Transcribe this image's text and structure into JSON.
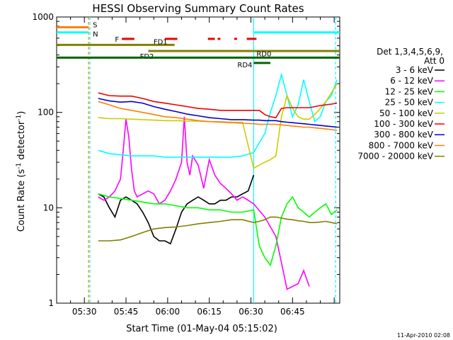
{
  "chart_data": {
    "type": "line",
    "title": "HESSI Observing Summary Count Rates",
    "ylabel": "Count Rate (s",
    "ylabel_sup1": "-1",
    "ylabel_mid": " detector",
    "ylabel_sup2": "-1",
    "ylabel_end": ")",
    "xlabel": "Start Time (01-May-04 05:15:02)",
    "yscale": "log",
    "ylim": [
      1,
      1000
    ],
    "xlim_minutes": [
      5.0,
      107.0
    ],
    "x_ticks": [
      {
        "label": "05:30",
        "min": 15
      },
      {
        "label": "05:45",
        "min": 30
      },
      {
        "label": "06:00",
        "min": 45
      },
      {
        "label": "06:15",
        "min": 60
      },
      {
        "label": "06:30",
        "min": 75
      },
      {
        "label": "06:45",
        "min": 90
      }
    ],
    "y_ticks": [
      {
        "label": "1",
        "v": 1
      },
      {
        "label": "10",
        "v": 10
      },
      {
        "label": "100",
        "v": 100
      },
      {
        "label": "1000",
        "v": 1000
      }
    ],
    "timestamp": "11-Apr-2010 02:08",
    "legend": {
      "header1": "Det 1,3,4,5,6,9,",
      "header2": "Att 0",
      "entries": [
        {
          "name": "3 - 6 keV",
          "color": "#000000"
        },
        {
          "name": "6 - 12 keV",
          "color": "#ff00ff"
        },
        {
          "name": "12 - 25 keV",
          "color": "#00ff00"
        },
        {
          "name": "25 - 50 keV",
          "color": "#00ffff"
        },
        {
          "name": "50 - 100 keV",
          "color": "#cccc00"
        },
        {
          "name": "100 - 300 keV",
          "color": "#ee0000"
        },
        {
          "name": "300 - 800 keV",
          "color": "#0000cc"
        },
        {
          "name": "800 - 7000 keV",
          "color": "#ff8000"
        },
        {
          "name": "7000 - 20000 keV",
          "color": "#808000"
        }
      ]
    },
    "flag_bars": [
      {
        "label": "S",
        "color": "#ff8000",
        "segments": [
          [
            5,
            16.5
          ]
        ],
        "level": 780
      },
      {
        "label": "N",
        "color": "#00ffff",
        "segments": [
          [
            5,
            16.5
          ],
          [
            76,
            107
          ]
        ],
        "level": 690
      },
      {
        "label": "F",
        "color": "#ee0000",
        "segments": [
          [
            28.5,
            33
          ],
          [
            44,
            48.5
          ],
          [
            59.5,
            62
          ],
          [
            63,
            64
          ],
          [
            69,
            70
          ],
          [
            73.5,
            77
          ]
        ],
        "level": 590,
        "dashed": true
      },
      {
        "label": "FD1",
        "color": "#808000",
        "segments": [
          [
            5,
            47.5
          ]
        ],
        "level": 510
      },
      {
        "label": "FD2",
        "color": "#808000",
        "segments": [
          [
            38,
            107
          ]
        ],
        "level": 440
      },
      {
        "label": "RD0",
        "color": "#006400",
        "segments": [
          [
            5,
            107
          ]
        ],
        "level": 375
      },
      {
        "label": "RD4",
        "color": "#006400",
        "segments": [
          [
            76,
            82
          ]
        ],
        "level": 330
      }
    ],
    "vlines": [
      {
        "min": 16.5,
        "color": "#ff8000",
        "dash": true
      },
      {
        "min": 17.0,
        "color": "#00ffff",
        "dash": true
      },
      {
        "min": 76.0,
        "color": "#00ffff",
        "dash": false
      },
      {
        "min": 105.5,
        "color": "#00ffff",
        "dash": true
      }
    ],
    "series": [
      {
        "name": "3 - 6 keV",
        "color": "#000000",
        "x": [
          20,
          22,
          24,
          26,
          28,
          30,
          32,
          34,
          36,
          38,
          40,
          42,
          44,
          46,
          48,
          50,
          52,
          54,
          56,
          58,
          60,
          62,
          64,
          66,
          68,
          70,
          72,
          74,
          76
        ],
        "y": [
          14,
          13,
          10,
          8,
          12,
          13,
          12,
          11,
          9,
          7,
          5,
          4.5,
          4.5,
          4.2,
          6,
          9,
          11,
          12,
          13,
          12,
          11,
          11,
          12,
          12,
          13,
          13,
          14,
          15,
          22
        ]
      },
      {
        "name": "6 - 12 keV",
        "color": "#ff00ff",
        "x": [
          20,
          22,
          24,
          26,
          28,
          29,
          30,
          31,
          32,
          33,
          34,
          36,
          38,
          40,
          42,
          44,
          46,
          48,
          50,
          51,
          52,
          53,
          54,
          56,
          58,
          60,
          62,
          64,
          66,
          68,
          70,
          72,
          74,
          76,
          80,
          84,
          88,
          92,
          94,
          96
        ],
        "y": [
          13,
          12,
          13,
          15,
          20,
          40,
          85,
          55,
          25,
          15,
          13,
          14,
          15,
          14,
          11,
          12,
          15,
          20,
          30,
          90,
          30,
          22,
          35,
          28,
          16,
          32,
          22,
          18,
          16,
          14,
          12,
          13,
          12,
          11,
          8,
          5,
          1.4,
          1.6,
          2.2,
          1.5
        ]
      },
      {
        "name": "12 - 25 keV",
        "color": "#00ff00",
        "x": [
          20,
          24,
          28,
          32,
          36,
          40,
          44,
          48,
          52,
          56,
          60,
          64,
          68,
          72,
          76,
          78,
          80,
          82,
          84,
          86,
          88,
          90,
          92,
          94,
          96,
          98,
          100,
          102,
          104,
          106
        ],
        "y": [
          14,
          13,
          12.5,
          12,
          11.5,
          11,
          11,
          10.5,
          10,
          10,
          9.5,
          9.5,
          9,
          9,
          9.5,
          4,
          3,
          2.5,
          4,
          8,
          11,
          13,
          10,
          9,
          8,
          9,
          10,
          11,
          8.5,
          9.5
        ]
      },
      {
        "name": "25 - 50 keV",
        "color": "#00ffff",
        "x": [
          20,
          24,
          28,
          32,
          36,
          40,
          44,
          48,
          52,
          56,
          60,
          64,
          68,
          72,
          76,
          78,
          80,
          82,
          84,
          86,
          88,
          90,
          92,
          94,
          96,
          98,
          100,
          102,
          104,
          106
        ],
        "y": [
          40,
          37,
          36,
          35,
          35,
          35,
          34,
          34,
          34,
          34,
          34,
          34,
          34,
          35,
          38,
          48,
          60,
          100,
          150,
          250,
          150,
          90,
          120,
          220,
          130,
          80,
          90,
          130,
          150,
          220
        ]
      },
      {
        "name": "50 - 100 keV",
        "color": "#cccc00",
        "x": [
          20,
          24,
          28,
          32,
          36,
          40,
          44,
          48,
          52,
          56,
          60,
          64,
          68,
          72,
          76,
          78,
          80,
          82,
          84,
          86,
          88,
          90,
          92,
          94,
          96,
          98,
          100,
          102,
          104,
          106
        ],
        "y": [
          88,
          86,
          86,
          85,
          84,
          83,
          82,
          82,
          81,
          81,
          80,
          80,
          79,
          79,
          26,
          28,
          30,
          32,
          35,
          90,
          150,
          110,
          90,
          85,
          85,
          95,
          110,
          130,
          160,
          200
        ]
      },
      {
        "name": "100 - 300 keV",
        "color": "#ee0000",
        "x": [
          20,
          24,
          28,
          32,
          36,
          40,
          44,
          48,
          52,
          56,
          60,
          64,
          68,
          72,
          76,
          78,
          80,
          82,
          84,
          86,
          88,
          90,
          92,
          94,
          96,
          98,
          100,
          102,
          104,
          106
        ],
        "y": [
          160,
          150,
          148,
          148,
          140,
          130,
          125,
          120,
          115,
          110,
          108,
          105,
          105,
          105,
          105,
          105,
          95,
          90,
          88,
          110,
          112,
          112,
          112,
          112,
          112,
          115,
          118,
          120,
          122,
          125
        ]
      },
      {
        "name": "300 - 800 keV",
        "color": "#0000cc",
        "x": [
          20,
          24,
          28,
          32,
          36,
          40,
          44,
          48,
          52,
          56,
          60,
          64,
          68,
          72,
          76,
          78,
          80,
          82,
          84,
          86,
          88,
          90,
          92,
          94,
          96,
          98,
          100,
          102,
          104,
          106
        ],
        "y": [
          140,
          132,
          128,
          130,
          125,
          115,
          108,
          102,
          96,
          92,
          88,
          86,
          84,
          84,
          83,
          83,
          82,
          82,
          82,
          80,
          79,
          78,
          77,
          76,
          75,
          74,
          73,
          72,
          71,
          70
        ]
      },
      {
        "name": "800 - 7000 keV",
        "color": "#ff8000",
        "x": [
          20,
          24,
          28,
          32,
          36,
          40,
          44,
          48,
          52,
          56,
          60,
          64,
          68,
          72,
          76,
          78,
          80,
          82,
          84,
          86,
          88,
          90,
          92,
          94,
          96,
          98,
          100,
          102,
          104,
          106
        ],
        "y": [
          130,
          120,
          110,
          105,
          100,
          95,
          90,
          88,
          85,
          82,
          80,
          79,
          78,
          77,
          76,
          75,
          75,
          75,
          75,
          74,
          73,
          72,
          71,
          70,
          70,
          69,
          68,
          67,
          66,
          65
        ]
      },
      {
        "name": "7000 - 20000 keV",
        "color": "#808000",
        "x": [
          20,
          24,
          28,
          32,
          36,
          40,
          44,
          48,
          52,
          56,
          60,
          64,
          68,
          72,
          76,
          78,
          80,
          82,
          84,
          86,
          88,
          90,
          92,
          94,
          96,
          98,
          100,
          102,
          104,
          106
        ],
        "y": [
          4.5,
          4.5,
          4.6,
          5,
          5.5,
          6,
          6.2,
          6.3,
          6.5,
          6.8,
          7,
          7.2,
          7.5,
          7.5,
          7,
          7.2,
          7.5,
          8,
          8,
          7.8,
          7.6,
          7.5,
          7.3,
          7.2,
          7,
          7,
          7.1,
          7.2,
          7,
          6.8
        ]
      }
    ]
  }
}
